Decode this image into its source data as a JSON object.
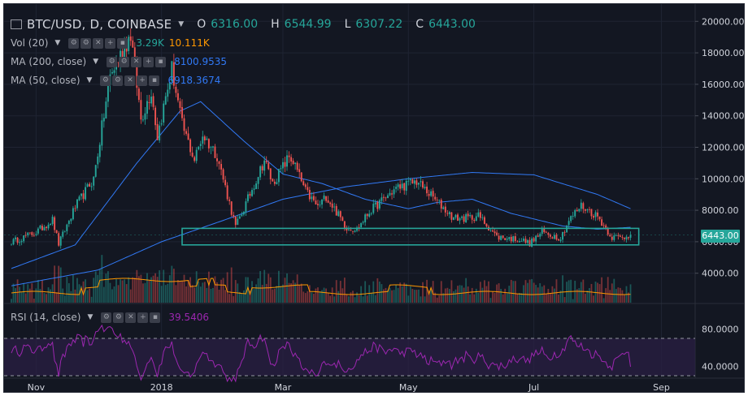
{
  "header": {
    "title": "BTC/USD, D, COINBASE",
    "ohlc": [
      {
        "key": "O",
        "value": "6316.00"
      },
      {
        "key": "H",
        "value": "6544.99"
      },
      {
        "key": "L",
        "value": "6307.22"
      },
      {
        "key": "C",
        "value": "6443.00"
      }
    ]
  },
  "indicators": {
    "vol": {
      "label": "Vol (20)",
      "v1": "3.29K",
      "v2": "10.111K"
    },
    "ma200": {
      "label": "MA (200, close)",
      "value": "8100.9535"
    },
    "ma50": {
      "label": "MA (50, close)",
      "value": "6918.3674"
    },
    "rsi": {
      "label": "RSI (14, close)",
      "value": "39.5406"
    }
  },
  "price_axis": {
    "ticks": [
      "20000.00",
      "18000.00",
      "16000.00",
      "14000.00",
      "12000.00",
      "10000.00",
      "8000.00",
      "6000.00",
      "4000.00"
    ],
    "last_price": "6443.00"
  },
  "rsi_axis": {
    "ticks": [
      "80.0000",
      "40.0000"
    ]
  },
  "time_axis": {
    "ticks": [
      "Nov",
      "2018",
      "Mar",
      "May",
      "Jul",
      "Sep"
    ]
  },
  "colors": {
    "background": "#131722",
    "up": "#26a69a",
    "down": "#ef5350",
    "ma200": "#3179f5",
    "ma50": "#3179f5",
    "vol_ma": "#ff9800",
    "rsi": "#9c27b0",
    "rsi_band": "#2b1f45",
    "support_box": "#26a69a"
  },
  "chart_data": {
    "type": "candlestick",
    "title": "BTC/USD, D, COINBASE",
    "x_range": [
      "2017-10-20",
      "2018-08-17"
    ],
    "ylim": [
      2000,
      20500
    ],
    "log_scale": false,
    "grid": true,
    "price_anchors": [
      [
        "2017-10-20",
        5980
      ],
      [
        "2017-11-01",
        6600
      ],
      [
        "2017-11-09",
        7400
      ],
      [
        "2017-11-12",
        5860
      ],
      [
        "2017-11-20",
        8200
      ],
      [
        "2017-11-29",
        10000
      ],
      [
        "2017-12-07",
        16500
      ],
      [
        "2017-12-17",
        19200
      ],
      [
        "2017-12-22",
        13800
      ],
      [
        "2017-12-27",
        15600
      ],
      [
        "2017-12-30",
        12700
      ],
      [
        "2018-01-06",
        17000
      ],
      [
        "2018-01-11",
        13400
      ],
      [
        "2018-01-17",
        11200
      ],
      [
        "2018-01-21",
        12800
      ],
      [
        "2018-01-28",
        11500
      ],
      [
        "2018-02-06",
        6950
      ],
      [
        "2018-02-10",
        8100
      ],
      [
        "2018-02-20",
        11200
      ],
      [
        "2018-02-24",
        9700
      ],
      [
        "2018-03-04",
        11400
      ],
      [
        "2018-03-06",
        11100
      ],
      [
        "2018-03-12",
        9200
      ],
      [
        "2018-03-18",
        8200
      ],
      [
        "2018-03-22",
        8900
      ],
      [
        "2018-04-01",
        6900
      ],
      [
        "2018-04-06",
        6800
      ],
      [
        "2018-04-12",
        7900
      ],
      [
        "2018-04-25",
        9400
      ],
      [
        "2018-05-05",
        9850
      ],
      [
        "2018-05-10",
        9200
      ],
      [
        "2018-05-23",
        7500
      ],
      [
        "2018-05-30",
        7500
      ],
      [
        "2018-06-04",
        7650
      ],
      [
        "2018-06-10",
        6800
      ],
      [
        "2018-06-13",
        6300
      ],
      [
        "2018-06-24",
        6150
      ],
      [
        "2018-06-29",
        5900
      ],
      [
        "2018-07-05",
        6600
      ],
      [
        "2018-07-14",
        6250
      ],
      [
        "2018-07-18",
        7350
      ],
      [
        "2018-07-24",
        8300
      ],
      [
        "2018-08-01",
        7600
      ],
      [
        "2018-08-08",
        6300
      ],
      [
        "2018-08-13",
        6250
      ],
      [
        "2018-08-17",
        6443
      ]
    ],
    "ma200_anchors": [
      [
        "2017-10-20",
        3200
      ],
      [
        "2017-12-01",
        4200
      ],
      [
        "2018-01-01",
        6000
      ],
      [
        "2018-02-01",
        7400
      ],
      [
        "2018-03-01",
        8700
      ],
      [
        "2018-04-01",
        9500
      ],
      [
        "2018-05-01",
        10000
      ],
      [
        "2018-06-01",
        10400
      ],
      [
        "2018-07-01",
        10250
      ],
      [
        "2018-08-01",
        9000
      ],
      [
        "2018-08-17",
        8100
      ]
    ],
    "ma50_anchors": [
      [
        "2017-10-20",
        4300
      ],
      [
        "2017-11-20",
        5800
      ],
      [
        "2017-12-20",
        11000
      ],
      [
        "2018-01-10",
        14300
      ],
      [
        "2018-01-20",
        14900
      ],
      [
        "2018-02-10",
        12400
      ],
      [
        "2018-03-01",
        10300
      ],
      [
        "2018-03-20",
        9700
      ],
      [
        "2018-04-10",
        8700
      ],
      [
        "2018-05-01",
        8100
      ],
      [
        "2018-05-15",
        8500
      ],
      [
        "2018-06-01",
        8700
      ],
      [
        "2018-06-20",
        7800
      ],
      [
        "2018-07-15",
        7000
      ],
      [
        "2018-08-01",
        6800
      ],
      [
        "2018-08-17",
        6918
      ]
    ],
    "volume_ma_level": [
      3.2,
      10.1
    ],
    "support_zone": {
      "y": [
        5800,
        6850
      ],
      "x": [
        "2018-01-11",
        "2018-08-21"
      ]
    },
    "rsi": {
      "range": [
        20,
        100
      ],
      "overbought": 70,
      "oversold": 30,
      "last": 39.5406
    }
  }
}
